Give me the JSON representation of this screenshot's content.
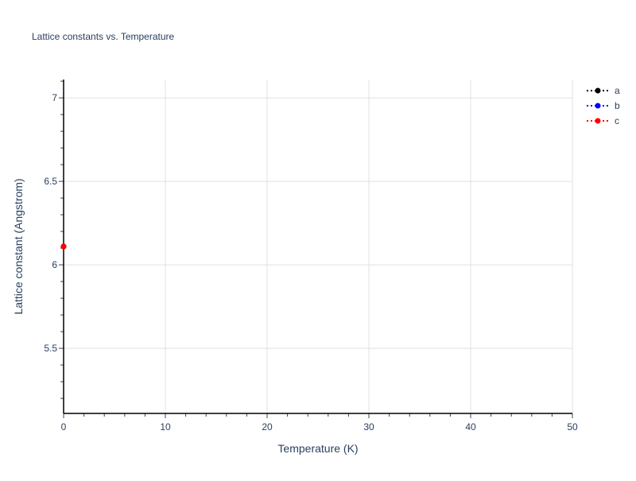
{
  "chart_data": {
    "type": "line",
    "title": "Lattice constants vs. Temperature",
    "xlabel": "Temperature (K)",
    "ylabel": "Lattice constant (Angstrom)",
    "xlim": [
      0,
      50
    ],
    "ylim": [
      5.11,
      7.11
    ],
    "x_ticks": [
      "0",
      "10",
      "20",
      "30",
      "40",
      "50"
    ],
    "y_ticks": [
      "5.5",
      "6",
      "6.5",
      "7"
    ],
    "grid": true,
    "legend_position": "top-right",
    "line_style": "dotted with markers",
    "series": [
      {
        "name": "a",
        "color": "#000000",
        "x": [
          0
        ],
        "y": [
          6.11
        ]
      },
      {
        "name": "b",
        "color": "#0000ff",
        "x": [
          0
        ],
        "y": [
          6.11
        ]
      },
      {
        "name": "c",
        "color": "#ff0000",
        "x": [
          0
        ],
        "y": [
          6.11
        ]
      }
    ]
  }
}
